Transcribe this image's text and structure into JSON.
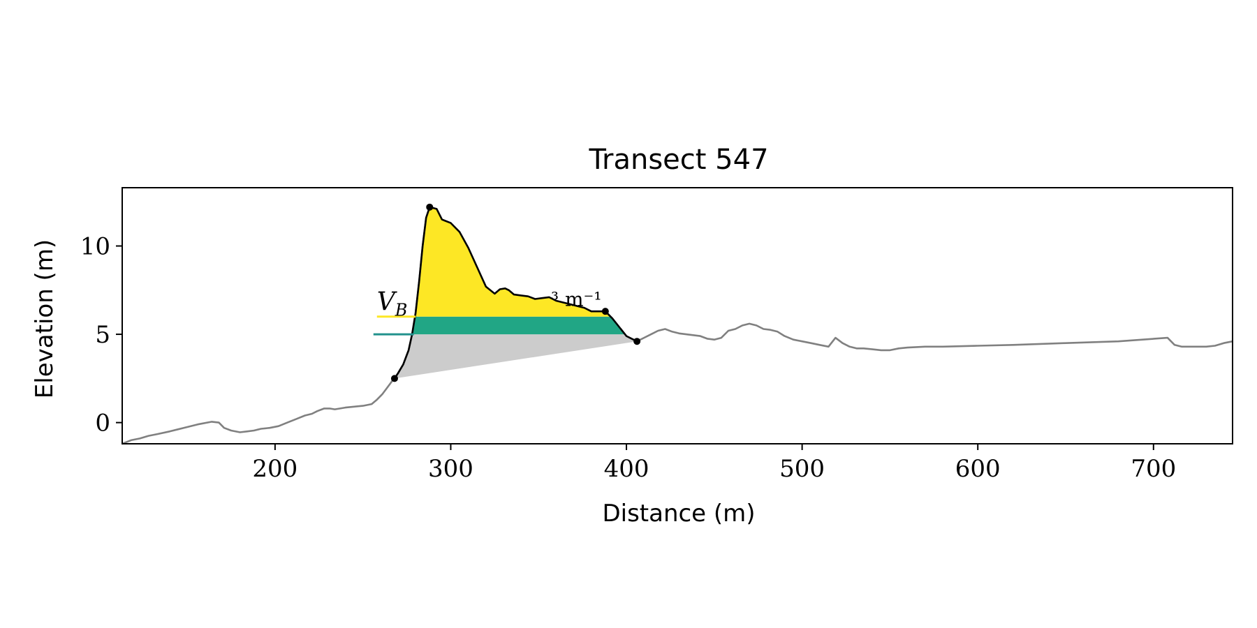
{
  "chart_data": {
    "type": "area",
    "title": "Transect 547",
    "xlabel": "Distance (m)",
    "ylabel": "Elevation (m)",
    "xlim": [
      113,
      745
    ],
    "ylim": [
      -1.2,
      13.3
    ],
    "xticks": [
      200,
      300,
      400,
      500,
      600,
      700
    ],
    "yticks": [
      0,
      5,
      10
    ],
    "xtick_labels": [
      "200",
      "300",
      "400",
      "500",
      "600",
      "700"
    ],
    "ytick_labels": [
      "0",
      "5",
      "10"
    ],
    "grid": false,
    "annotation": {
      "text_left": "V_B",
      "text_right": "³ m⁻¹",
      "x": 258,
      "y": 6.2
    },
    "colors": {
      "profile": "#808080",
      "dune": "#000000",
      "upper_fill": "#fde725",
      "middle_fill": "#21a685",
      "lower_fill": "#cccccc",
      "upper_level": "#fde725",
      "lower_level": "#21918c"
    },
    "levels": {
      "upper": 6.0,
      "lower": 5.0,
      "upper_line_x": [
        258,
        280
      ],
      "lower_line_x": [
        256,
        279
      ]
    },
    "markers": [
      {
        "name": "toe",
        "x": 268,
        "y": 2.5
      },
      {
        "name": "crest",
        "x": 288,
        "y": 12.2
      },
      {
        "name": "heel",
        "x": 388,
        "y": 6.3
      },
      {
        "name": "end",
        "x": 406,
        "y": 4.6
      }
    ],
    "series": [
      {
        "role": "profile",
        "x": [
          113,
          118,
          123,
          128,
          133,
          140,
          148,
          156,
          164,
          168,
          171,
          175,
          180,
          184,
          188,
          192,
          197,
          202,
          207,
          212,
          217,
          221,
          224,
          228,
          231,
          234,
          237,
          240,
          245,
          250,
          255,
          258,
          261,
          264,
          267,
          268,
          270,
          273,
          276,
          278,
          280,
          282,
          284,
          286,
          288
        ],
        "y": [
          -1.2,
          -1.0,
          -0.9,
          -0.75,
          -0.65,
          -0.5,
          -0.3,
          -0.1,
          0.05,
          0.0,
          -0.3,
          -0.45,
          -0.55,
          -0.5,
          -0.45,
          -0.35,
          -0.3,
          -0.2,
          0.0,
          0.2,
          0.4,
          0.5,
          0.65,
          0.8,
          0.8,
          0.75,
          0.8,
          0.85,
          0.9,
          0.95,
          1.05,
          1.3,
          1.6,
          2.0,
          2.4,
          2.5,
          2.8,
          3.3,
          4.1,
          5.0,
          6.2,
          8.0,
          10.0,
          11.6,
          12.2
        ]
      },
      {
        "role": "dune",
        "x": [
          268,
          270,
          273,
          276,
          278,
          280,
          282,
          284,
          286,
          288,
          292,
          295,
          300,
          305,
          310,
          315,
          320,
          325,
          328,
          331,
          333,
          336,
          340,
          344,
          348,
          352,
          356,
          360,
          364,
          368,
          372,
          376,
          380,
          384,
          388,
          392,
          396,
          400,
          404,
          406
        ],
        "y": [
          2.5,
          2.8,
          3.3,
          4.1,
          5.0,
          6.2,
          8.0,
          10.0,
          11.6,
          12.2,
          12.1,
          11.5,
          11.3,
          10.8,
          9.9,
          8.8,
          7.7,
          7.3,
          7.55,
          7.6,
          7.5,
          7.25,
          7.2,
          7.15,
          7.0,
          7.05,
          7.1,
          6.9,
          6.8,
          6.7,
          6.6,
          6.5,
          6.3,
          6.3,
          6.3,
          5.9,
          5.4,
          4.9,
          4.7,
          4.6
        ]
      },
      {
        "role": "profile",
        "x": [
          406,
          410,
          414,
          418,
          422,
          426,
          430,
          434,
          438,
          442,
          446,
          450,
          454,
          458,
          462,
          466,
          470,
          474,
          478,
          482,
          486,
          490,
          495,
          500,
          505,
          510,
          515,
          519,
          523,
          527,
          531,
          535,
          540,
          545,
          550,
          555,
          560,
          570,
          580,
          600,
          620,
          650,
          680,
          708,
          712,
          716,
          720,
          725,
          730,
          735,
          740,
          745
        ],
        "y": [
          4.6,
          4.8,
          5.0,
          5.2,
          5.3,
          5.15,
          5.05,
          5.0,
          4.95,
          4.9,
          4.75,
          4.7,
          4.8,
          5.2,
          5.3,
          5.5,
          5.6,
          5.5,
          5.3,
          5.25,
          5.15,
          4.9,
          4.7,
          4.6,
          4.5,
          4.4,
          4.3,
          4.8,
          4.5,
          4.3,
          4.2,
          4.2,
          4.15,
          4.1,
          4.1,
          4.2,
          4.25,
          4.3,
          4.3,
          4.35,
          4.4,
          4.5,
          4.6,
          4.8,
          4.4,
          4.3,
          4.3,
          4.3,
          4.3,
          4.35,
          4.5,
          4.6
        ]
      }
    ]
  }
}
